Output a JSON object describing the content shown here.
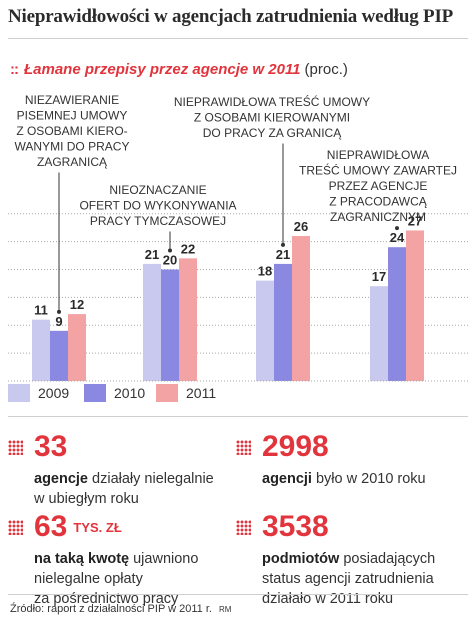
{
  "title": "Nieprawidłowości w agencjach zatrudnienia według PIP",
  "subtitle": {
    "dots": "::",
    "main": "Łamane przepisy przez agencje w 2011",
    "unit": "(proc.)"
  },
  "chart_data": {
    "type": "bar",
    "title": "Łamane przepisy przez agencje w 2011",
    "categories": [
      "NIEZAWIERANIE PISEMNEJ UMOWY Z OSOBAMI KIERO-WANYMI DO PRACY ZAGRANICĄ",
      "NIEOZNACZANIE OFERT DO WYKONYWANIA PRACY TYMCZASOWEJ",
      "NIEPRAWIDŁOWA TREŚĆ UMOWY Z OSOBAMI KIEROWANYMI DO PRACY ZA GRANICĄ",
      "NIEPRAWIDŁOWA TREŚĆ UMOWY ZAWARTEJ PRZEZ AGENCJE Z PRACODAWCĄ ZAGRANICZNYM"
    ],
    "category_lines": [
      [
        "NIEZAWIERANIE",
        "PISEMNEJ UMOWY",
        "Z OSOBAMI KIERO-",
        "WANYMI DO PRACY",
        "ZAGRANICĄ"
      ],
      [
        "NIEOZNACZANIE",
        "OFERT DO WYKONYWANIA",
        "PRACY TYMCZASOWEJ"
      ],
      [
        "NIEPRAWIDŁOWA TREŚĆ UMOWY",
        "Z OSOBAMI KIEROWANYMI",
        "DO PRACY ZA GRANICĄ"
      ],
      [
        "NIEPRAWIDŁOWA",
        "TREŚĆ UMOWY ZAWARTEJ",
        "PRZEZ AGENCJE",
        "Z PRACODAWCĄ",
        "ZAGRANICZNYM"
      ]
    ],
    "series": [
      {
        "name": "2009",
        "color": "#c9c8ee",
        "values": [
          11,
          21,
          18,
          17
        ]
      },
      {
        "name": "2010",
        "color": "#8b88e2",
        "values": [
          9,
          20,
          21,
          24
        ]
      },
      {
        "name": "2011",
        "color": "#f3a3a3",
        "values": [
          12,
          22,
          26,
          27
        ]
      }
    ],
    "ylim": [
      0,
      33
    ],
    "grid": true,
    "legend": "bottom-left",
    "grid_color": "#aaaaaa",
    "connector_color": "#333333"
  },
  "stats": [
    {
      "big": "33",
      "suffix": "",
      "bold": "agencje",
      "rest": " działały nielegalnie",
      "line2": "w ubiegłym roku",
      "line3": ""
    },
    {
      "big": "2998",
      "suffix": "",
      "bold": "agencji",
      "rest": " było w 2010 roku",
      "line2": "",
      "line3": ""
    },
    {
      "big": "63",
      "suffix": "TYS. ZŁ",
      "bold": "na taką kwotę",
      "rest": " ujawniono",
      "line2": "nielegalne opłaty",
      "line3": "za pośrednictwo pracy"
    },
    {
      "big": "3538",
      "suffix": "",
      "bold": "podmiotów",
      "rest": " posiadających",
      "line2": "status agencji zatrudnienia",
      "line3": "działało w 2011 roku"
    }
  ],
  "source": "Źródło: raport z działalności PIP w 2011 r.",
  "author": "RM",
  "colors": {
    "accent": "#e2343c"
  }
}
